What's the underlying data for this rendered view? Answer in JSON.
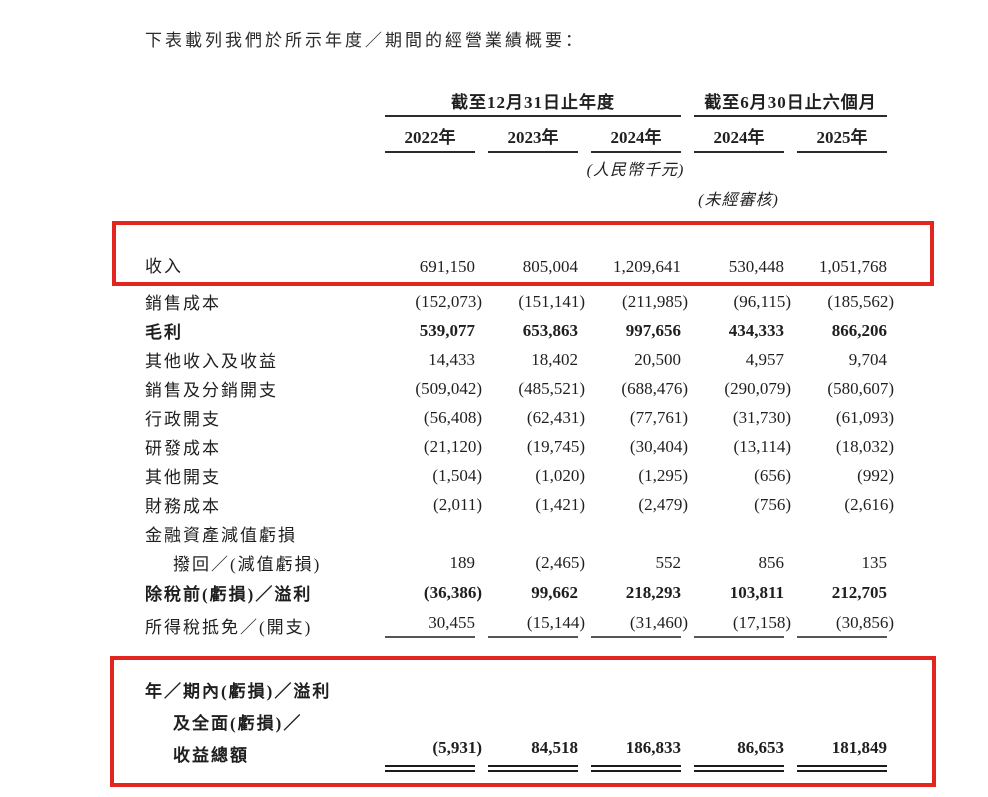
{
  "title": "下表載列我們於所示年度／期間的經營業績概要：",
  "table": {
    "col_groups": [
      {
        "label": "截至12月31日止年度",
        "span": 3
      },
      {
        "label": "截至6月30日止六個月",
        "span": 2
      }
    ],
    "columns": [
      "2022年",
      "2023年",
      "2024年",
      "2024年",
      "2025年"
    ],
    "unit_note": "(人民幣千元)",
    "audit_note": "(未經審核)",
    "rows": [
      {
        "label": "收入",
        "bold": false,
        "indent": 0,
        "style": "revenue",
        "values": [
          "691,150",
          "805,004",
          "1,209,641",
          "530,448",
          "1,051,768"
        ]
      },
      {
        "label": "銷售成本",
        "bold": false,
        "indent": 0,
        "values": [
          "(152,073)",
          "(151,141)",
          "(211,985)",
          "(96,115)",
          "(185,562)"
        ]
      },
      {
        "label": "毛利",
        "bold": true,
        "indent": 0,
        "values": [
          "539,077",
          "653,863",
          "997,656",
          "434,333",
          "866,206"
        ]
      },
      {
        "label": "其他收入及收益",
        "bold": false,
        "indent": 0,
        "values": [
          "14,433",
          "18,402",
          "20,500",
          "4,957",
          "9,704"
        ]
      },
      {
        "label": "銷售及分銷開支",
        "bold": false,
        "indent": 0,
        "values": [
          "(509,042)",
          "(485,521)",
          "(688,476)",
          "(290,079)",
          "(580,607)"
        ]
      },
      {
        "label": "行政開支",
        "bold": false,
        "indent": 0,
        "values": [
          "(56,408)",
          "(62,431)",
          "(77,761)",
          "(31,730)",
          "(61,093)"
        ]
      },
      {
        "label": "研發成本",
        "bold": false,
        "indent": 0,
        "values": [
          "(21,120)",
          "(19,745)",
          "(30,404)",
          "(13,114)",
          "(18,032)"
        ]
      },
      {
        "label": "其他開支",
        "bold": false,
        "indent": 0,
        "values": [
          "(1,504)",
          "(1,020)",
          "(1,295)",
          "(656)",
          "(992)"
        ]
      },
      {
        "label": "財務成本",
        "bold": false,
        "indent": 0,
        "values": [
          "(2,011)",
          "(1,421)",
          "(2,479)",
          "(756)",
          "(2,616)"
        ]
      },
      {
        "label": "金融資產減值虧損",
        "bold": false,
        "indent": 0,
        "values": [
          "",
          "",
          "",
          "",
          ""
        ]
      },
      {
        "label": "撥回／(減值虧損)",
        "bold": false,
        "indent": 1,
        "values": [
          "189",
          "(2,465)",
          "552",
          "856",
          "135"
        ]
      },
      {
        "label": "除稅前(虧損)／溢利",
        "bold": true,
        "indent": 0,
        "style": "pretax",
        "values": [
          "(36,386)",
          "99,662",
          "218,293",
          "103,811",
          "212,705"
        ]
      },
      {
        "label": "所得稅抵免／(開支)",
        "bold": false,
        "indent": 0,
        "style": "tax",
        "values": [
          "30,455",
          "(15,144)",
          "(31,460)",
          "(17,158)",
          "(30,856)"
        ]
      }
    ],
    "total_row": {
      "label_lines": [
        "年／期內(虧損)／溢利",
        "及全面(虧損)／",
        "收益總額"
      ],
      "bold": true,
      "values": [
        "(5,931)",
        "84,518",
        "186,833",
        "86,653",
        "181,849"
      ]
    }
  },
  "colors": {
    "highlight_red": "#e2251f",
    "text": "#1f1f1f"
  }
}
